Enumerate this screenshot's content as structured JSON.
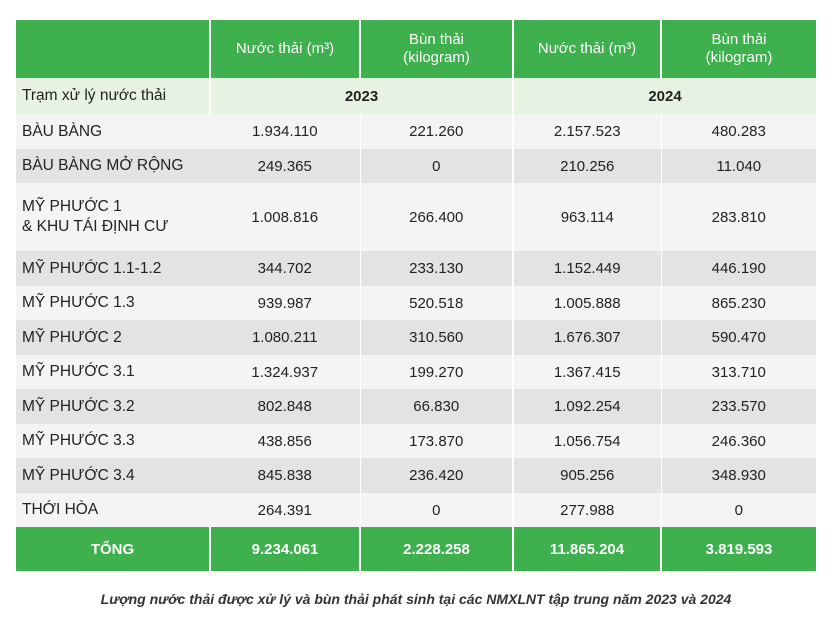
{
  "header": {
    "col1": "",
    "wastewater_2023": "Nước thải (m³)",
    "sludge_2023": "Bùn thải (kilogram)",
    "wastewater_2024": "Nước thải (m³)",
    "sludge_2024": "Bùn thải (kilogram)"
  },
  "subheader": {
    "label": "Trạm xử lý nước thải",
    "year1": "2023",
    "year2": "2024"
  },
  "rows": [
    {
      "name": "BÀU BÀNG",
      "w2023": "1.934.110",
      "s2023": "221.260",
      "w2024": "2.157.523",
      "s2024": "480.283"
    },
    {
      "name": "BÀU BÀNG MỞ RỘNG",
      "w2023": "249.365",
      "s2023": "0",
      "w2024": "210.256",
      "s2024": "11.040"
    },
    {
      "name": "MỸ PHƯỚC 1\n& KHU TÁI ĐỊNH CƯ",
      "w2023": "1.008.816",
      "s2023": "266.400",
      "w2024": "963.114",
      "s2024": "283.810"
    },
    {
      "name": "MỸ PHƯỚC 1.1-1.2",
      "w2023": "344.702",
      "s2023": "233.130",
      "w2024": "1.152.449",
      "s2024": "446.190"
    },
    {
      "name": "MỸ PHƯỚC 1.3",
      "w2023": "939.987",
      "s2023": "520.518",
      "w2024": "1.005.888",
      "s2024": "865.230"
    },
    {
      "name": "MỸ PHƯỚC 2",
      "w2023": "1.080.211",
      "s2023": "310.560",
      "w2024": "1.676.307",
      "s2024": "590.470"
    },
    {
      "name": "MỸ PHƯỚC 3.1",
      "w2023": "1.324.937",
      "s2023": "199.270",
      "w2024": "1.367.415",
      "s2024": "313.710"
    },
    {
      "name": "MỸ PHƯỚC 3.2",
      "w2023": "802.848",
      "s2023": "66.830",
      "w2024": "1.092.254",
      "s2024": "233.570"
    },
    {
      "name": "MỸ PHƯỚC 3.3",
      "w2023": "438.856",
      "s2023": "173.870",
      "w2024": "1.056.754",
      "s2024": "246.360"
    },
    {
      "name": "MỸ PHƯỚC 3.4",
      "w2023": "845.838",
      "s2023": "236.420",
      "w2024": "905.256",
      "s2024": "348.930"
    },
    {
      "name": "THỚI HÒA",
      "w2023": "264.391",
      "s2023": "0",
      "w2024": "277.988",
      "s2024": "0"
    }
  ],
  "total": {
    "label": "TỔNG",
    "w2023": "9.234.061",
    "s2023": "2.228.258",
    "w2024": "11.865.204",
    "s2024": "3.819.593"
  },
  "caption": "Lượng nước thải được xử lý và bùn thải phát sinh tại các NMXLNT tập trung năm 2023 và 2024",
  "colors": {
    "header_green": "#3fb04e",
    "subheader_bg": "#e6f3e3",
    "row_light": "#f4f4f4",
    "row_dark": "#e3e3e3"
  }
}
